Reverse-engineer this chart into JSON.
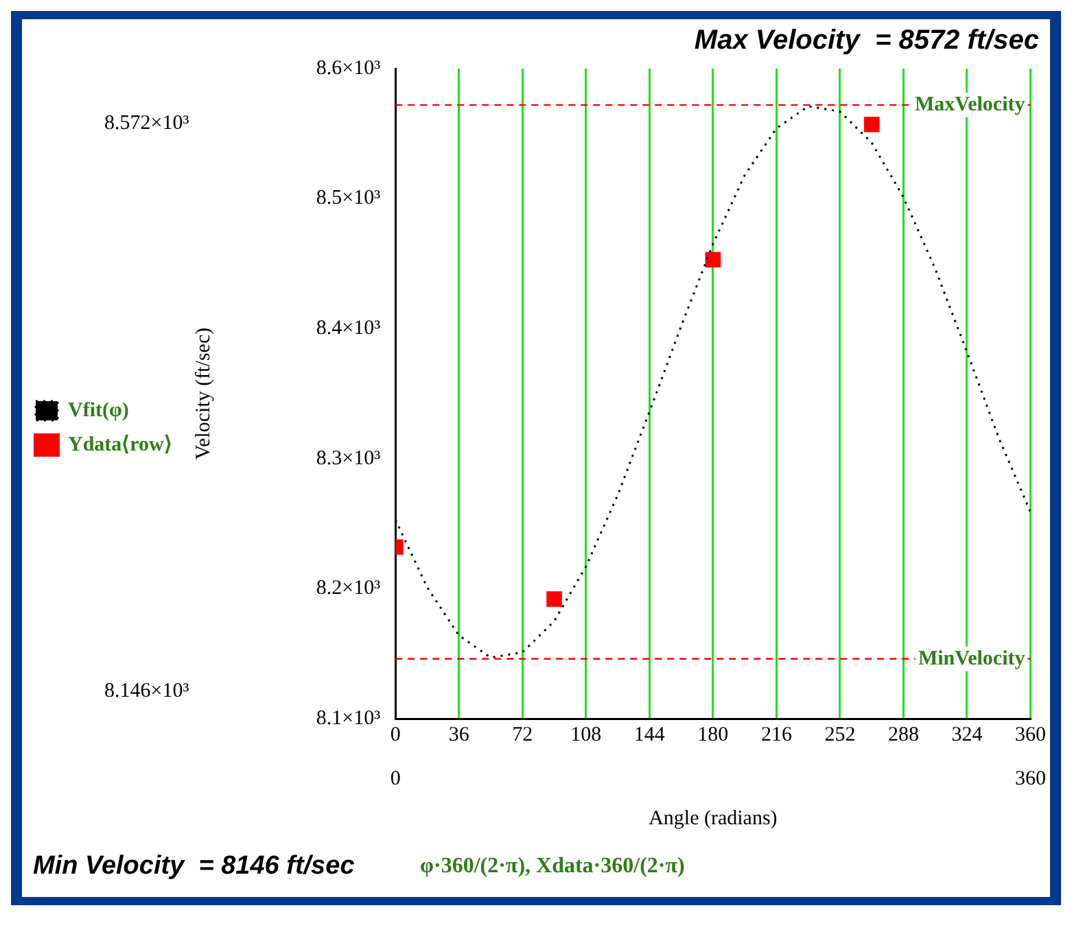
{
  "chart_data": {
    "type": "line",
    "title": "Max Velocity  = 8572 ft/sec",
    "xlabel": "Angle (radians)",
    "ylabel": "Velocity (ft/sec)",
    "xlim": [
      0,
      360
    ],
    "xticks": [
      0,
      36,
      72,
      108,
      144,
      180,
      216,
      252,
      288,
      324,
      360
    ],
    "ylim": [
      8100,
      8600
    ],
    "yticks": [
      {
        "value": 8100,
        "label": "8.1×10³"
      },
      {
        "value": 8200,
        "label": "8.2×10³"
      },
      {
        "value": 8300,
        "label": "8.3×10³"
      },
      {
        "value": 8400,
        "label": "8.4×10³"
      },
      {
        "value": 8500,
        "label": "8.5×10³"
      },
      {
        "value": 8600,
        "label": "8.6×10³"
      }
    ],
    "grid": "x",
    "legend": "left",
    "series": [
      {
        "name": "Vfit(φ)",
        "type": "line",
        "color": "#000000",
        "line_style": "dotted",
        "marker": "none",
        "x": [
          0,
          18,
          36,
          54,
          72,
          90,
          108,
          126,
          144,
          162,
          180,
          198,
          216,
          234,
          252,
          270,
          288,
          306,
          324,
          342,
          360
        ],
        "values": [
          8253,
          8201,
          8164,
          8147,
          8151,
          8175,
          8217,
          8272,
          8336,
          8402,
          8465,
          8518,
          8554,
          8571,
          8567,
          8543,
          8501,
          8446,
          8382,
          8316,
          8259
        ]
      },
      {
        "name": "Ydata⟨row⟩",
        "type": "scatter",
        "color": "#ff0000",
        "marker": "square",
        "x": [
          0,
          90,
          180,
          270
        ],
        "values": [
          8232,
          8192,
          8453,
          8557
        ]
      }
    ],
    "ref_lines": [
      {
        "axis": "y",
        "value": 8572,
        "label": "MaxVelocity",
        "color": "#ff0000",
        "line_style": "dashed"
      },
      {
        "axis": "y",
        "value": 8146,
        "label": "MinVelocity",
        "color": "#ff0000",
        "line_style": "dashed"
      }
    ],
    "annotations": [
      "8.572×10³",
      "8.146×10³",
      "0",
      "360",
      "Min Velocity  = 8146 ft/sec",
      "φ·360/(2·π), Xdata·360/(2·π)"
    ]
  }
}
